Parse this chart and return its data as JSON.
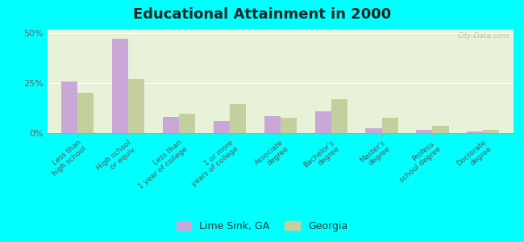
{
  "title": "Educational Attainment in 2000",
  "categories": [
    "Less than\nhigh school",
    "High school\nor equiv.",
    "Less than\n1 year of college",
    "1 or more\nyears of college",
    "Associate\ndegree",
    "Bachelor's\ndegree",
    "Master's\ndegree",
    "Profess.\nschool degree",
    "Doctorate\ndegree"
  ],
  "lime_sink": [
    26.0,
    47.0,
    8.0,
    6.0,
    8.5,
    11.0,
    2.5,
    1.5,
    1.0
  ],
  "georgia": [
    20.0,
    27.0,
    9.5,
    14.5,
    7.5,
    17.0,
    7.5,
    3.5,
    1.5
  ],
  "lime_sink_color": "#c9a8d8",
  "georgia_color": "#c5cf9e",
  "background_color": "#00ffff",
  "plot_bg": "#e8f2d8",
  "ylim": [
    0,
    52
  ],
  "yticks": [
    0,
    25,
    50
  ],
  "ytick_labels": [
    "0%",
    "25%",
    "50%"
  ],
  "legend_lime_sink": "Lime Sink, GA",
  "legend_georgia": "Georgia",
  "watermark": "City-Data.com",
  "bar_width": 0.32
}
